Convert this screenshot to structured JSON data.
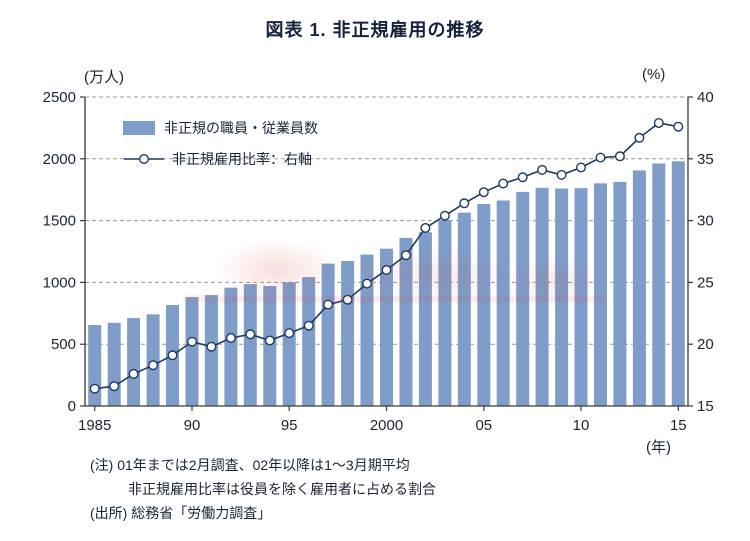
{
  "title": "図表 1. 非正規雇用の推移",
  "left_axis_unit": "(万人)",
  "right_axis_unit": "(%)",
  "x_axis_unit": "(年)",
  "legend": {
    "bars": "非正規の職員・従業員数",
    "line": "非正規雇用比率：右軸"
  },
  "notes": [
    "(注) 01年までは2月調査、02年以降は1～3月期平均",
    "非正規雇用比率は役員を除く雇用者に占める割合",
    "(出所) 総務省「労働力調査」"
  ],
  "colors": {
    "bar": "#7f9dc9",
    "line": "#1f3864",
    "grid": "#9a9a9a",
    "axis": "#3a3a3a",
    "text": "#1a2433"
  },
  "chart_data": {
    "type": "bar+line",
    "title": "図表 1. 非正規雇用の推移",
    "x": [
      1985,
      1986,
      1987,
      1988,
      1989,
      1990,
      1991,
      1992,
      1993,
      1994,
      1995,
      1996,
      1997,
      1998,
      1999,
      2000,
      2001,
      2002,
      2003,
      2004,
      2005,
      2006,
      2007,
      2008,
      2009,
      2010,
      2011,
      2012,
      2013,
      2014,
      2015
    ],
    "x_ticks": [
      {
        "year": 1985,
        "label": "1985"
      },
      {
        "year": 1990,
        "label": "90"
      },
      {
        "year": 1995,
        "label": "95"
      },
      {
        "year": 2000,
        "label": "2000"
      },
      {
        "year": 2005,
        "label": "05"
      },
      {
        "year": 2010,
        "label": "10"
      },
      {
        "year": 2015,
        "label": "15"
      }
    ],
    "left_axis": {
      "min": 0,
      "max": 2500,
      "ticks": [
        0,
        500,
        1000,
        1500,
        2000,
        2500
      ],
      "unit": "万人"
    },
    "right_axis": {
      "min": 15,
      "max": 40,
      "ticks": [
        15,
        20,
        25,
        30,
        35,
        40
      ],
      "unit": "%"
    },
    "grid": "dashed-horizontal",
    "legend_position": "top-left-inside",
    "series": [
      {
        "name": "非正規の職員・従業員数",
        "type": "bar",
        "axis": "left",
        "values": [
          655,
          673,
          711,
          742,
          817,
          881,
          897,
          958,
          986,
          971,
          1001,
          1043,
          1152,
          1173,
          1225,
          1273,
          1360,
          1406,
          1504,
          1564,
          1634,
          1663,
          1732,
          1765,
          1760,
          1763,
          1802,
          1813,
          1906,
          1962,
          1980
        ]
      },
      {
        "name": "非正規雇用比率：右軸",
        "type": "line",
        "axis": "right",
        "values": [
          16.4,
          16.6,
          17.6,
          18.3,
          19.1,
          20.2,
          19.8,
          20.5,
          20.8,
          20.3,
          20.9,
          21.5,
          23.2,
          23.6,
          24.9,
          26.0,
          27.2,
          29.4,
          30.4,
          31.4,
          32.3,
          33.0,
          33.5,
          34.1,
          33.7,
          34.3,
          35.1,
          35.2,
          36.7,
          37.9,
          37.6
        ]
      }
    ]
  }
}
